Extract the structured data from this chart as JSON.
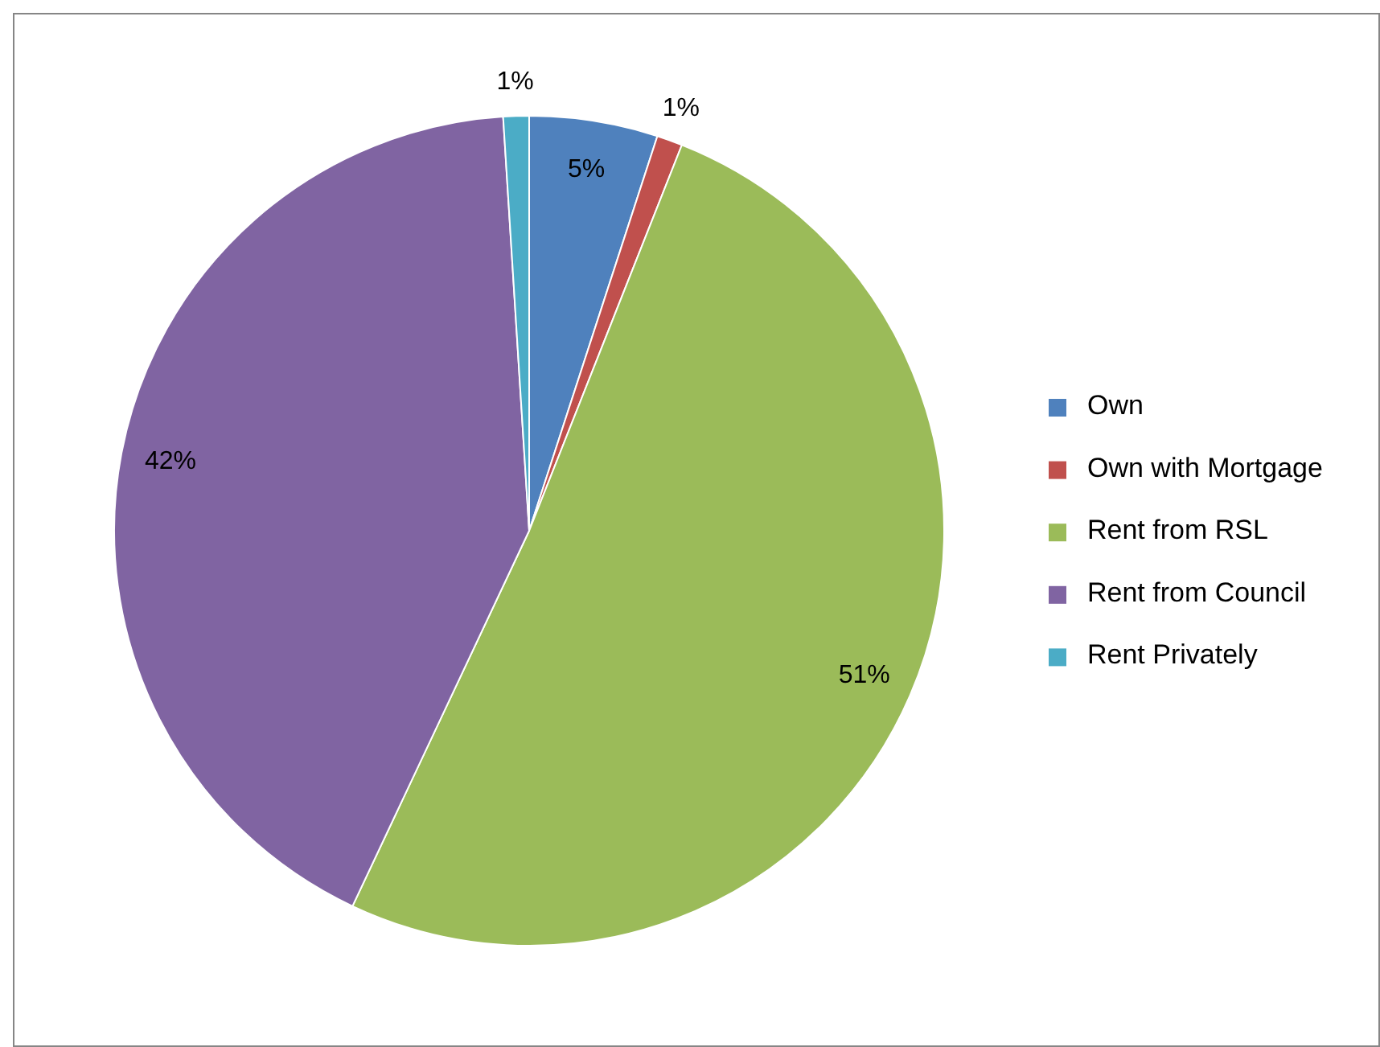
{
  "chart_data": {
    "type": "pie",
    "categories": [
      "Own",
      "Own with Mortgage",
      "Rent from RSL",
      "Rent from Council",
      "Rent Privately"
    ],
    "values": [
      5,
      1,
      51,
      42,
      1
    ],
    "colors": [
      "#4f81bd",
      "#c0504d",
      "#9bbb59",
      "#8064a2",
      "#4bacc6"
    ],
    "value_labels": [
      "5%",
      "1%",
      "51%",
      "42%",
      "1%"
    ],
    "legend": "right"
  }
}
